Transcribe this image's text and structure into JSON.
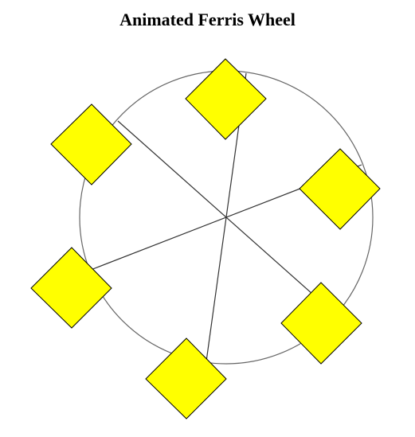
{
  "title": "Animated Ferris Wheel",
  "wheel": {
    "spoke_count": 3,
    "gondola_count": 6,
    "rim_color": "#666666",
    "spoke_color": "#333333",
    "gondola_fill": "#ffff00",
    "gondola_stroke": "#000000",
    "gondola_shape": "diamond"
  }
}
